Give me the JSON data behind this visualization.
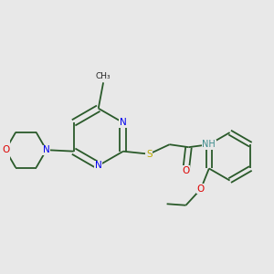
{
  "bg_color": "#e8e8e8",
  "atom_colors": {
    "N": "#0000ee",
    "O": "#dd0000",
    "S": "#bbaa00",
    "NH": "#3a8a8a"
  },
  "bond_color": "#2a5a2a",
  "lw": 1.3,
  "font_size": 7.5,
  "figsize": [
    3.0,
    3.0
  ],
  "dpi": 100
}
